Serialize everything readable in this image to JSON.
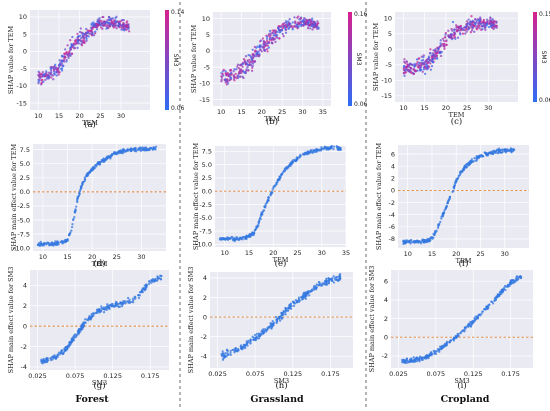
{
  "columns": [
    "Forest",
    "Grassland",
    "Cropland"
  ],
  "chart_data": [
    {
      "id": "a",
      "panel_label": "(a)",
      "type": "scatter",
      "kind": "dependence",
      "xlabel": "TEM",
      "ylabel": "SHAP value for TEM",
      "xlim": [
        8,
        37
      ],
      "ylim": [
        -17,
        12
      ],
      "xticks": [
        10,
        15,
        20,
        25,
        30
      ],
      "yticks": [
        -15,
        -10,
        -5,
        0,
        5,
        10
      ],
      "x": [
        10,
        12,
        14,
        15,
        16,
        17,
        18,
        19,
        20,
        21,
        22,
        23,
        24,
        25,
        26,
        28,
        30,
        32
      ],
      "y": [
        -7.5,
        -7,
        -6,
        -5,
        -3,
        -1,
        1,
        2.5,
        3.5,
        4,
        5,
        6.5,
        7.5,
        8,
        8.5,
        8.5,
        8,
        7
      ],
      "spread": 3.5,
      "colorbar": {
        "label": "SM3",
        "min": 0.06,
        "max": 0.14,
        "colors": [
          "#2e6cf5",
          "#d8208e"
        ]
      }
    },
    {
      "id": "b",
      "panel_label": "(b)",
      "type": "scatter",
      "kind": "dependence",
      "xlabel": "TEM",
      "ylabel": "SHAP value for TEM",
      "xlim": [
        8,
        37
      ],
      "ylim": [
        -17,
        12
      ],
      "xticks": [
        10,
        15,
        20,
        25,
        30,
        35
      ],
      "yticks": [
        -15,
        -10,
        -5,
        0,
        5,
        10
      ],
      "x": [
        10,
        12,
        14,
        16,
        17,
        18,
        19,
        20,
        21,
        22,
        24,
        26,
        28,
        30,
        32,
        34
      ],
      "y": [
        -8,
        -8,
        -7,
        -5,
        -3.5,
        -2,
        -0.5,
        1,
        2.5,
        3.5,
        5.5,
        7.5,
        8.5,
        9,
        8.5,
        7.5
      ],
      "spread": 4.0,
      "colorbar": {
        "label": "SM3",
        "min": 0.06,
        "max": 0.16,
        "colors": [
          "#2e6cf5",
          "#d8208e"
        ]
      }
    },
    {
      "id": "c",
      "panel_label": "(c)",
      "type": "scatter",
      "kind": "dependence",
      "xlabel": "TEM",
      "ylabel": "SHAP value for TEM",
      "xlim": [
        8,
        37
      ],
      "ylim": [
        -17,
        12
      ],
      "xticks": [
        10,
        15,
        20,
        25,
        30
      ],
      "yticks": [
        -15,
        -10,
        -5,
        0,
        5,
        10
      ],
      "x": [
        10,
        12,
        14,
        15,
        16,
        17,
        18,
        19,
        20,
        21,
        22,
        24,
        26,
        28,
        30,
        32
      ],
      "y": [
        -6,
        -6,
        -5.5,
        -5,
        -4,
        -2.5,
        -1,
        1,
        3,
        4.5,
        5.5,
        7,
        8,
        8.5,
        8.5,
        8
      ],
      "spread": 4.5,
      "colorbar": {
        "label": "SM3",
        "min": 0.06,
        "max": 0.15,
        "colors": [
          "#2e6cf5",
          "#d8208e"
        ]
      }
    },
    {
      "id": "d",
      "panel_label": "(d)",
      "type": "scatter",
      "kind": "main",
      "xlabel": "TEM",
      "ylabel": "SHAP main effect value for TEM",
      "xlim": [
        8,
        35
      ],
      "ylim": [
        -10.5,
        8.5
      ],
      "xticks": [
        10,
        15,
        20,
        25,
        30
      ],
      "yticks": [
        -10.0,
        -7.5,
        -5.0,
        -2.5,
        0.0,
        2.5,
        5.0,
        7.5
      ],
      "ytick_labels": [
        "-10.0",
        "-7.5",
        "-5.0",
        "-2.5",
        "0.0",
        "2.5",
        "5.0",
        "7.5"
      ],
      "x": [
        9,
        12,
        14,
        15,
        16,
        17,
        18,
        19,
        20,
        21,
        22,
        24,
        26,
        28,
        30,
        33
      ],
      "y": [
        -9.3,
        -9.2,
        -9,
        -8.5,
        -6,
        -1.5,
        1.5,
        3,
        4,
        4.8,
        5.5,
        6.5,
        7.2,
        7.5,
        7.6,
        7.7
      ],
      "spread": 0.5,
      "refline": 0,
      "color": "#3478e0"
    },
    {
      "id": "e",
      "panel_label": "(e)",
      "type": "scatter",
      "kind": "main",
      "xlabel": "TEM",
      "ylabel": "SHAP main effect value for TEM",
      "xlim": [
        8,
        35
      ],
      "ylim": [
        -10.5,
        8.5
      ],
      "xticks": [
        10,
        15,
        20,
        25,
        30,
        35
      ],
      "yticks": [
        -10.0,
        -7.5,
        -5.0,
        -2.5,
        0.0,
        2.5,
        5.0,
        7.5
      ],
      "ytick_labels": [
        "-10.0",
        "-7.5",
        "-5.0",
        "-2.5",
        "0.0",
        "2.5",
        "5.0",
        "7.5"
      ],
      "x": [
        9,
        12,
        14,
        16,
        17,
        18,
        19,
        20,
        21,
        22,
        24,
        26,
        28,
        30,
        32,
        34
      ],
      "y": [
        -9,
        -9,
        -8.8,
        -8,
        -6,
        -3.5,
        -1.5,
        0.5,
        2,
        3.5,
        5.5,
        6.8,
        7.5,
        8,
        8.2,
        8
      ],
      "spread": 0.5,
      "refline": 0,
      "color": "#3478e0"
    },
    {
      "id": "f",
      "panel_label": "(f)",
      "type": "scatter",
      "kind": "main",
      "xlabel": "TEM",
      "ylabel": "SHAP main effect value for TEM",
      "xlim": [
        8,
        35
      ],
      "ylim": [
        -9.5,
        7.5
      ],
      "xticks": [
        10,
        15,
        20,
        25,
        30
      ],
      "yticks": [
        -8,
        -6,
        -4,
        -2,
        0,
        2,
        4,
        6
      ],
      "ytick_labels": [
        "-8",
        "-6",
        "-4",
        "-2",
        "0",
        "2",
        "4",
        "6"
      ],
      "x": [
        9,
        12,
        14,
        15,
        16,
        17,
        18,
        19,
        20,
        21,
        22,
        24,
        26,
        28,
        30,
        32
      ],
      "y": [
        -8.5,
        -8.5,
        -8.3,
        -8,
        -6.5,
        -4.5,
        -2.5,
        -0.5,
        1.5,
        3,
        4,
        5.3,
        6,
        6.4,
        6.6,
        6.7
      ],
      "spread": 0.5,
      "refline": 0,
      "color": "#3478e0"
    },
    {
      "id": "g",
      "panel_label": "(g)",
      "type": "scatter",
      "kind": "main",
      "xlabel": "SM3",
      "ylabel": "SHAP main effect value for SM3",
      "xlim": [
        0.015,
        0.2
      ],
      "ylim": [
        -4.3,
        5.5
      ],
      "xticks": [
        0.025,
        0.075,
        0.125,
        0.175
      ],
      "xtick_labels": [
        "0.025",
        "0.075",
        "0.125",
        "0.175"
      ],
      "yticks": [
        -4,
        -2,
        0,
        2,
        4
      ],
      "ytick_labels": [
        "-4",
        "-2",
        "0",
        "2",
        "4"
      ],
      "x": [
        0.03,
        0.04,
        0.05,
        0.06,
        0.07,
        0.08,
        0.09,
        0.1,
        0.11,
        0.12,
        0.13,
        0.14,
        0.15,
        0.16,
        0.17,
        0.18,
        0.19
      ],
      "y": [
        -3.5,
        -3.3,
        -3,
        -2.5,
        -1.5,
        -0.5,
        0.5,
        1.2,
        1.6,
        1.9,
        2.1,
        2.3,
        2.5,
        3.0,
        4.0,
        4.5,
        4.8
      ],
      "spread": 0.4,
      "refline": 0,
      "color": "#3478e0"
    },
    {
      "id": "h",
      "panel_label": "(h)",
      "type": "scatter",
      "kind": "main",
      "xlabel": "SM3",
      "ylabel": "SHAP main effect value for SM3",
      "xlim": [
        0.015,
        0.205
      ],
      "ylim": [
        -5.2,
        4.6
      ],
      "xticks": [
        0.025,
        0.075,
        0.125,
        0.175
      ],
      "xtick_labels": [
        "0.025",
        "0.075",
        "0.125",
        "0.175"
      ],
      "yticks": [
        -4,
        -2,
        0,
        2,
        4
      ],
      "ytick_labels": [
        "-4",
        "-2",
        "0",
        "2",
        "4"
      ],
      "x": [
        0.03,
        0.04,
        0.05,
        0.06,
        0.07,
        0.08,
        0.09,
        0.1,
        0.11,
        0.12,
        0.13,
        0.14,
        0.15,
        0.16,
        0.17,
        0.18,
        0.19
      ],
      "y": [
        -4.0,
        -3.7,
        -3.4,
        -3.0,
        -2.4,
        -1.9,
        -1.3,
        -0.6,
        0.2,
        0.9,
        1.6,
        2.2,
        2.8,
        3.2,
        3.6,
        3.9,
        4.1
      ],
      "spread": 0.5,
      "refline": 0,
      "color": "#3478e0"
    },
    {
      "id": "i",
      "panel_label": "(i)",
      "type": "scatter",
      "kind": "main",
      "xlabel": "SM3",
      "ylabel": "SHAP main effect value for SM3",
      "xlim": [
        0.015,
        0.205
      ],
      "ylim": [
        -3.3,
        7.2
      ],
      "xticks": [
        0.025,
        0.075,
        0.125,
        0.175
      ],
      "xtick_labels": [
        "0.025",
        "0.075",
        "0.125",
        "0.175"
      ],
      "yticks": [
        -2,
        0,
        2,
        4,
        6
      ],
      "ytick_labels": [
        "-2",
        "0",
        "2",
        "4",
        "6"
      ],
      "x": [
        0.03,
        0.04,
        0.05,
        0.06,
        0.07,
        0.08,
        0.09,
        0.1,
        0.11,
        0.12,
        0.13,
        0.14,
        0.15,
        0.16,
        0.17,
        0.18,
        0.19
      ],
      "y": [
        -2.6,
        -2.5,
        -2.4,
        -2.2,
        -1.8,
        -1.3,
        -0.7,
        -0.1,
        0.6,
        1.3,
        2.1,
        2.9,
        3.7,
        4.6,
        5.4,
        6.1,
        6.5
      ],
      "spread": 0.35,
      "refline": 0,
      "color": "#3478e0"
    }
  ]
}
